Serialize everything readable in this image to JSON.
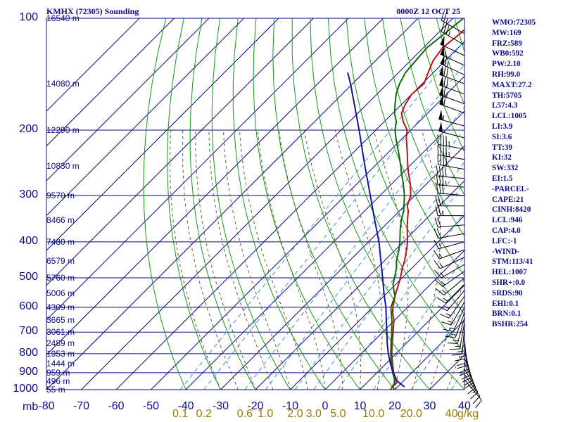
{
  "header": {
    "title": "KMHX (72305) Sounding",
    "datetime": "0000Z 12 OCT 25"
  },
  "indices": [
    "WMO:72305",
    "MW:169",
    "FRZ:589",
    "WB0:592",
    "PW:2.10",
    "RH:99.0",
    "MAXT:27.2",
    "TH:5705",
    "L57:4.3",
    "LCL:1005",
    "LI:3.9",
    "SI:3.6",
    "TT:39",
    "KI:32",
    "SW:332",
    "EI:1.5",
    "-PARCEL-",
    "CAPE:21",
    "CINH:8420",
    "LCL:946",
    "CAP:4.0",
    "LFC:-1",
    "-WIND-",
    "STM:113/41",
    "HEL:1007",
    "SHR+:0.0",
    "SRDS:90",
    "EHI:0.1",
    "BRN:0.1",
    "BSHR:254"
  ],
  "axis": {
    "pressure_unit": "mb",
    "mixing_ratio_unit": "g/kg"
  },
  "colors": {
    "frame": "#0b0b8c",
    "isobar": "#0b0b8c",
    "isotherm": "#0b0b8c",
    "dry_adiabat": "#109a10",
    "moist_adiabat": "#6b5a2a",
    "mixing_ratio": "#3a8fc8",
    "temperature": "#c01010",
    "dewpoint": "#0a6a0a",
    "parcel": "#1414a0",
    "wind_barb": "#000000",
    "mixing_label": "#9a7a00"
  },
  "chart_data": {
    "type": "line",
    "title": "KMHX (72305) Sounding",
    "subtitle": "0000Z 12 OCT 25",
    "xlabel": "",
    "ylabel": "mb",
    "xlim": [
      -80,
      40
    ],
    "ylim": [
      1000,
      100
    ],
    "grid": true,
    "pressure_ticks": [
      100,
      200,
      300,
      400,
      500,
      600,
      700,
      800,
      900,
      1000
    ],
    "temperature_ticks": [
      -80,
      -70,
      -60,
      -50,
      -40,
      -30,
      -20,
      -10,
      0,
      10,
      20,
      30,
      40
    ],
    "mixing_ratio_ticks": [
      0.1,
      0.2,
      0.6,
      1.0,
      2.0,
      3.0,
      5.0,
      10.0,
      20.0,
      40.0
    ],
    "mixing_ratio_tick_labels": [
      "0.1",
      "0.2",
      "0.6",
      "1.0",
      "2.0",
      "3.0",
      "5.0",
      "10.0",
      "20.0",
      "40"
    ],
    "height_labels": [
      {
        "p": 100,
        "label": "16540 m"
      },
      {
        "p": 150,
        "label": "14080 m"
      },
      {
        "p": 200,
        "label": "12290 m"
      },
      {
        "p": 250,
        "label": "10830 m"
      },
      {
        "p": 300,
        "label": "9570 m"
      },
      {
        "p": 350,
        "label": "8466 m"
      },
      {
        "p": 400,
        "label": "7480 m"
      },
      {
        "p": 450,
        "label": "6579 m"
      },
      {
        "p": 500,
        "label": "5760 m"
      },
      {
        "p": 550,
        "label": "5006 m"
      },
      {
        "p": 600,
        "label": "4309 m"
      },
      {
        "p": 650,
        "label": "3665 m"
      },
      {
        "p": 700,
        "label": "3061 m"
      },
      {
        "p": 750,
        "label": "2489 m"
      },
      {
        "p": 800,
        "label": "1953 m"
      },
      {
        "p": 850,
        "label": "1444 m"
      },
      {
        "p": 900,
        "label": "959 m"
      },
      {
        "p": 950,
        "label": "496 m"
      },
      {
        "p": 1000,
        "label": "55 m"
      }
    ],
    "series": [
      {
        "kind": "temperature",
        "points": [
          [
            1000,
            19.8
          ],
          [
            980,
            18.5
          ],
          [
            960,
            18.6
          ],
          [
            930,
            16.8
          ],
          [
            900,
            14.8
          ],
          [
            850,
            11.8
          ],
          [
            800,
            8.8
          ],
          [
            750,
            5.9
          ],
          [
            700,
            3.0
          ],
          [
            650,
            -0.2
          ],
          [
            620,
            -2.8
          ],
          [
            600,
            -4.2
          ],
          [
            560,
            -6.8
          ],
          [
            540,
            -8.0
          ],
          [
            500,
            -10.5
          ],
          [
            470,
            -12.8
          ],
          [
            450,
            -14.2
          ],
          [
            420,
            -16.8
          ],
          [
            400,
            -18.8
          ],
          [
            370,
            -22.5
          ],
          [
            350,
            -25.0
          ],
          [
            330,
            -27.5
          ],
          [
            320,
            -29.2
          ],
          [
            300,
            -31.2
          ],
          [
            280,
            -34.5
          ],
          [
            260,
            -38.5
          ],
          [
            250,
            -40.5
          ],
          [
            230,
            -44.5
          ],
          [
            210,
            -49.0
          ],
          [
            200,
            -51.0
          ],
          [
            190,
            -54.5
          ],
          [
            180,
            -57.5
          ],
          [
            170,
            -59.0
          ],
          [
            160,
            -60.0
          ],
          [
            150,
            -59.5
          ],
          [
            140,
            -61.5
          ],
          [
            130,
            -63.5
          ],
          [
            120,
            -64.5
          ],
          [
            110,
            -63.5
          ],
          [
            100,
            -63.0
          ]
        ]
      },
      {
        "kind": "dewpoint",
        "points": [
          [
            1000,
            18.8
          ],
          [
            980,
            18.4
          ],
          [
            960,
            18.0
          ],
          [
            930,
            16.5
          ],
          [
            900,
            14.5
          ],
          [
            850,
            11.5
          ],
          [
            800,
            8.5
          ],
          [
            750,
            5.6
          ],
          [
            700,
            2.6
          ],
          [
            650,
            -0.8
          ],
          [
            600,
            -4.8
          ],
          [
            560,
            -6.8
          ],
          [
            540,
            -8.8
          ],
          [
            520,
            -10.8
          ],
          [
            500,
            -12.2
          ],
          [
            470,
            -14.5
          ],
          [
            450,
            -16.5
          ],
          [
            420,
            -19.0
          ],
          [
            400,
            -21.0
          ],
          [
            370,
            -24.5
          ],
          [
            350,
            -26.8
          ],
          [
            330,
            -28.8
          ],
          [
            300,
            -33.0
          ],
          [
            280,
            -36.5
          ],
          [
            260,
            -40.5
          ],
          [
            250,
            -42.5
          ],
          [
            230,
            -47.0
          ],
          [
            210,
            -52.0
          ],
          [
            200,
            -54.5
          ],
          [
            190,
            -56.5
          ],
          [
            180,
            -59.5
          ],
          [
            170,
            -62.0
          ],
          [
            160,
            -64.5
          ],
          [
            150,
            -66.5
          ],
          [
            140,
            -68.0
          ],
          [
            130,
            -68.5
          ],
          [
            120,
            -69.0
          ],
          [
            110,
            -68.0
          ],
          [
            100,
            -67.0
          ]
        ]
      },
      {
        "kind": "parcel",
        "points": [
          [
            983,
            22.0
          ],
          [
            950,
            18.4
          ],
          [
            900,
            14.6
          ],
          [
            850,
            11.2
          ],
          [
            800,
            7.8
          ],
          [
            750,
            4.5
          ],
          [
            700,
            1.2
          ],
          [
            650,
            -2.4
          ],
          [
            600,
            -6.2
          ],
          [
            550,
            -10.8
          ],
          [
            500,
            -15.6
          ],
          [
            450,
            -21.0
          ],
          [
            400,
            -27.0
          ],
          [
            350,
            -34.4
          ],
          [
            300,
            -42.8
          ],
          [
            250,
            -52.8
          ],
          [
            200,
            -64.8
          ],
          [
            150,
            -80.6
          ],
          [
            140,
            -84.6
          ]
        ]
      }
    ],
    "wind_barbs": [
      {
        "p": 110,
        "dir": 300,
        "spd": 25
      },
      {
        "p": 118,
        "dir": 300,
        "spd": 35
      },
      {
        "p": 126,
        "dir": 295,
        "spd": 50
      },
      {
        "p": 134,
        "dir": 295,
        "spd": 55
      },
      {
        "p": 142,
        "dir": 295,
        "spd": 65
      },
      {
        "p": 150,
        "dir": 290,
        "spd": 70
      },
      {
        "p": 160,
        "dir": 290,
        "spd": 70
      },
      {
        "p": 170,
        "dir": 290,
        "spd": 65
      },
      {
        "p": 180,
        "dir": 290,
        "spd": 60
      },
      {
        "p": 195,
        "dir": 285,
        "spd": 55
      },
      {
        "p": 210,
        "dir": 285,
        "spd": 50
      },
      {
        "p": 225,
        "dir": 280,
        "spd": 45
      },
      {
        "p": 240,
        "dir": 280,
        "spd": 45
      },
      {
        "p": 255,
        "dir": 280,
        "spd": 40
      },
      {
        "p": 270,
        "dir": 275,
        "spd": 40
      },
      {
        "p": 285,
        "dir": 275,
        "spd": 35
      },
      {
        "p": 300,
        "dir": 275,
        "spd": 30
      },
      {
        "p": 320,
        "dir": 270,
        "spd": 25
      },
      {
        "p": 340,
        "dir": 270,
        "spd": 25
      },
      {
        "p": 360,
        "dir": 265,
        "spd": 20
      },
      {
        "p": 380,
        "dir": 260,
        "spd": 20
      },
      {
        "p": 400,
        "dir": 255,
        "spd": 15
      },
      {
        "p": 420,
        "dir": 250,
        "spd": 15
      },
      {
        "p": 440,
        "dir": 245,
        "spd": 15
      },
      {
        "p": 460,
        "dir": 240,
        "spd": 15
      },
      {
        "p": 480,
        "dir": 235,
        "spd": 15
      },
      {
        "p": 500,
        "dir": 230,
        "spd": 15
      },
      {
        "p": 520,
        "dir": 225,
        "spd": 15
      },
      {
        "p": 540,
        "dir": 220,
        "spd": 15
      },
      {
        "p": 560,
        "dir": 215,
        "spd": 15
      },
      {
        "p": 580,
        "dir": 210,
        "spd": 15
      },
      {
        "p": 600,
        "dir": 205,
        "spd": 15
      },
      {
        "p": 620,
        "dir": 200,
        "spd": 15
      },
      {
        "p": 640,
        "dir": 195,
        "spd": 15
      },
      {
        "p": 660,
        "dir": 190,
        "spd": 15
      },
      {
        "p": 680,
        "dir": 185,
        "spd": 15
      },
      {
        "p": 700,
        "dir": 180,
        "spd": 15
      },
      {
        "p": 730,
        "dir": 175,
        "spd": 20
      },
      {
        "p": 760,
        "dir": 170,
        "spd": 20
      },
      {
        "p": 790,
        "dir": 165,
        "spd": 20
      },
      {
        "p": 820,
        "dir": 160,
        "spd": 20
      },
      {
        "p": 850,
        "dir": 155,
        "spd": 15
      },
      {
        "p": 880,
        "dir": 150,
        "spd": 15
      },
      {
        "p": 910,
        "dir": 145,
        "spd": 10
      },
      {
        "p": 940,
        "dir": 140,
        "spd": 10
      }
    ]
  }
}
